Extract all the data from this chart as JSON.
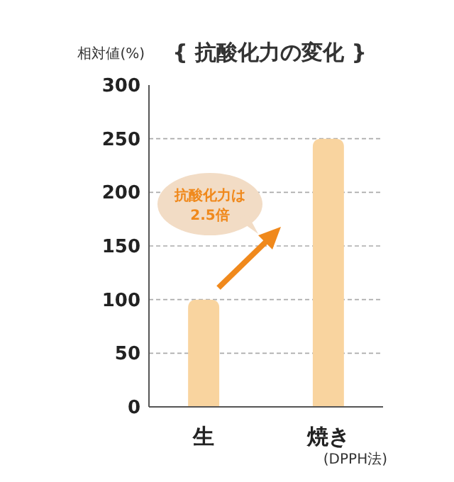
{
  "chart_data": {
    "type": "bar",
    "title": "{ 抗酸化力の変化 }",
    "ylabel": "相対値(%)",
    "categories": [
      "生",
      "焼き"
    ],
    "values": [
      100,
      250
    ],
    "color": "#f9d49f",
    "ylim": [
      0,
      300
    ],
    "yticks": [
      0,
      50,
      100,
      150,
      200,
      250,
      300
    ],
    "grid": "y",
    "annotations": [
      "抗酸化力は\n2.5倍",
      "(DPPH法)"
    ]
  }
}
